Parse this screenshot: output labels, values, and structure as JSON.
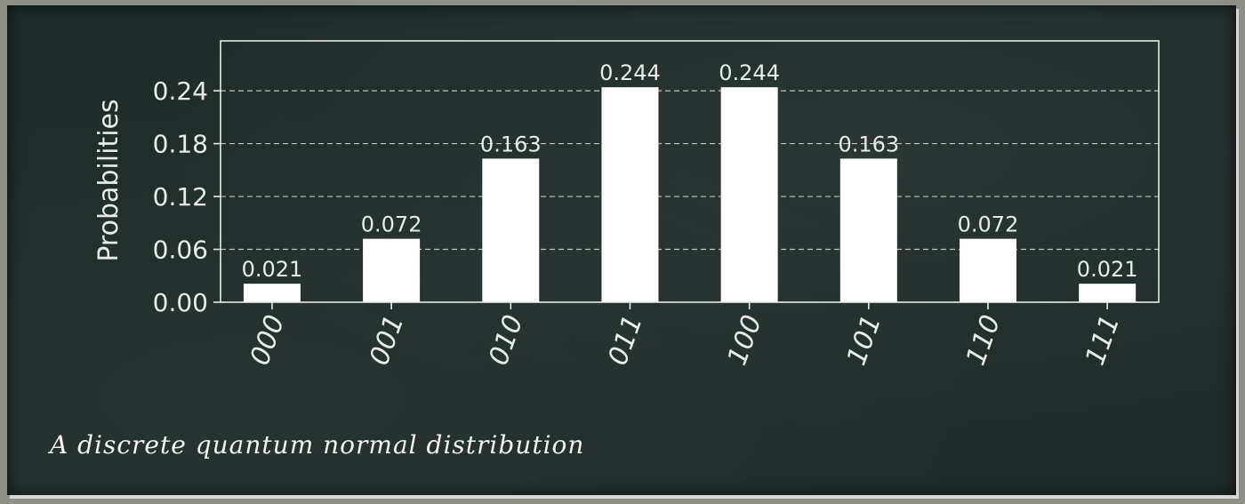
{
  "chart_data": {
    "type": "bar",
    "categories": [
      "000",
      "001",
      "010",
      "011",
      "100",
      "101",
      "110",
      "111"
    ],
    "values": [
      0.021,
      0.072,
      0.163,
      0.244,
      0.244,
      0.163,
      0.072,
      0.021
    ],
    "data_labels": [
      "0.021",
      "0.072",
      "0.163",
      "0.244",
      "0.244",
      "0.163",
      "0.072",
      "0.021"
    ],
    "ylabel": "Probabilities",
    "yticks": [
      "0.00",
      "0.06",
      "0.12",
      "0.18",
      "0.24"
    ],
    "ylim": [
      0,
      0.2966
    ],
    "grid": "horizontal dashed",
    "colors": {
      "bar": "#ffffff",
      "axes": "#e9ece6",
      "grid": "#cfd3cd",
      "background": "#1f2c2a"
    }
  },
  "caption": "A discrete quantum normal distribution"
}
